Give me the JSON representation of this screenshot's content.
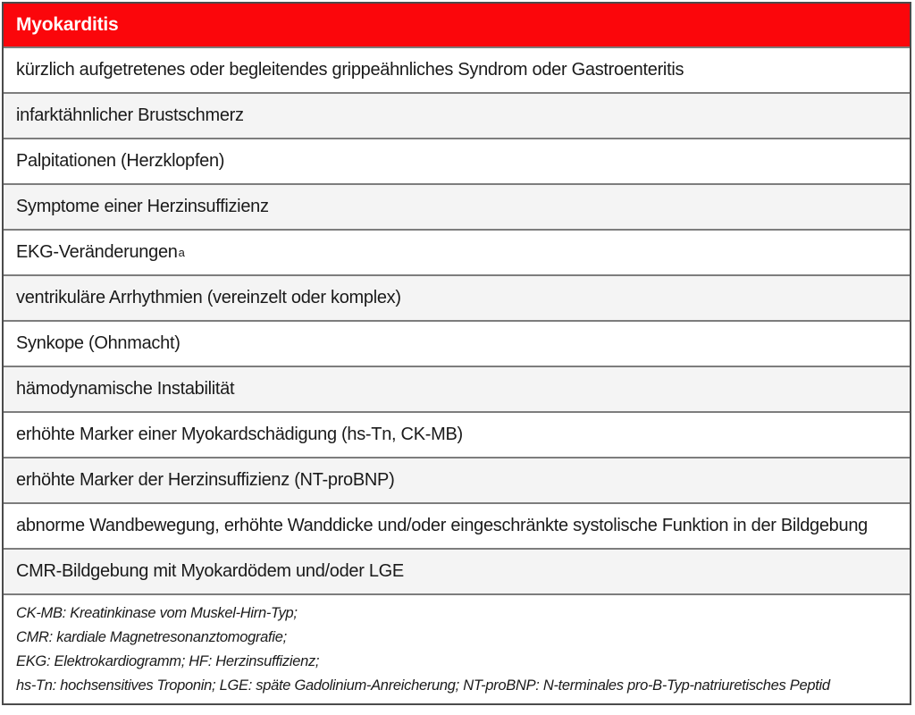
{
  "table": {
    "title": "Myokarditis",
    "rows": [
      {
        "text": "kürzlich aufgetretenes oder begleitendes grippeähnliches Syndrom oder Gastroenteritis"
      },
      {
        "text": "infarktähnlicher Brustschmerz"
      },
      {
        "text": "Palpitationen (Herzklopfen)"
      },
      {
        "text": "Symptome einer Herzinsuffizienz"
      },
      {
        "text": "EKG-Veränderungen",
        "superscript": "a"
      },
      {
        "text": "ventrikuläre Arrhythmien (vereinzelt oder komplex)"
      },
      {
        "text": "Synkope (Ohnmacht)"
      },
      {
        "text": "hämodynamische Instabilität"
      },
      {
        "text": "erhöhte Marker einer Myokardschädigung (hs-Tn, CK-MB)"
      },
      {
        "text": "erhöhte Marker der Herzinsuffizienz (NT-proBNP)"
      },
      {
        "text": "abnorme Wandbewegung, erhöhte Wanddicke und/oder eingeschränkte systolische Funktion in der Bildgebung"
      },
      {
        "text": "CMR-Bildgebung mit Myokardödem und/oder LGE"
      }
    ],
    "footnotes": [
      "CK-MB: Kreatinkinase vom Muskel-Hirn-Typ;",
      "CMR: kardiale Magnetresonanztomografie;",
      "EKG: Elektrokardiogramm; HF: Herzinsuffizienz;",
      "hs-Tn: hochsensitives Troponin; LGE: späte Gadolinium-Anreicherung; NT-proBNP: N-terminales pro-B-Typ-natriuretisches Peptid"
    ],
    "colors": {
      "header_bg": "#fb060b",
      "header_fg": "#ffffff",
      "row_alt_bg": "#f4f4f4",
      "border_outer": "#4b4b4b",
      "border_inner": "#7d7d7d",
      "text": "#1a1a1a"
    }
  }
}
